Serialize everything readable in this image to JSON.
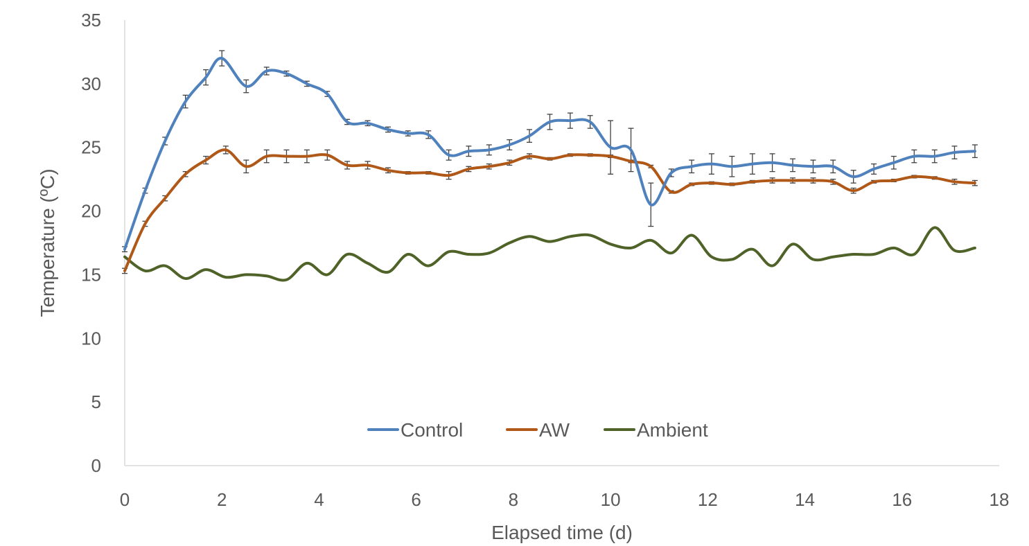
{
  "chart_data": {
    "type": "line",
    "title": "",
    "xlabel": "Elapsed time (d)",
    "ylabel": "Temperature (ºC)",
    "xlim": [
      0,
      18
    ],
    "ylim": [
      0,
      35
    ],
    "x_ticks": [
      "0",
      "2",
      "4",
      "6",
      "8",
      "10",
      "12",
      "14",
      "16",
      "18"
    ],
    "y_ticks": [
      "0",
      "5",
      "10",
      "15",
      "20",
      "25",
      "30",
      "35"
    ],
    "grid": false,
    "legend_position": "bottom-inside",
    "series": [
      {
        "name": "Control",
        "color": "#4f81bd",
        "x": [
          0,
          0.42,
          0.83,
          1.25,
          1.67,
          2.0,
          2.5,
          2.92,
          3.33,
          3.75,
          4.17,
          4.58,
          5.0,
          5.42,
          5.83,
          6.25,
          6.67,
          7.08,
          7.5,
          7.92,
          8.33,
          8.75,
          9.17,
          9.58,
          10.0,
          10.42,
          10.83,
          11.25,
          11.67,
          12.08,
          12.5,
          12.92,
          13.33,
          13.75,
          14.17,
          14.58,
          15.0,
          15.42,
          15.83,
          16.25,
          16.67,
          17.08,
          17.5
        ],
        "values": [
          17.0,
          21.6,
          25.5,
          28.6,
          30.5,
          32.0,
          29.8,
          31.0,
          30.8,
          30.0,
          29.2,
          27.0,
          26.9,
          26.4,
          26.1,
          26.0,
          24.4,
          24.7,
          24.8,
          25.2,
          25.9,
          27.0,
          27.1,
          27.0,
          25.0,
          24.8,
          20.5,
          23.0,
          23.5,
          23.7,
          23.5,
          23.7,
          23.8,
          23.6,
          23.5,
          23.5,
          22.7,
          23.3,
          23.8,
          24.3,
          24.3,
          24.6,
          24.7
        ],
        "errors": [
          0.2,
          0.2,
          0.3,
          0.5,
          0.6,
          0.6,
          0.5,
          0.3,
          0.2,
          0.2,
          0.2,
          0.2,
          0.2,
          0.2,
          0.2,
          0.3,
          0.4,
          0.4,
          0.4,
          0.4,
          0.5,
          0.6,
          0.6,
          0.5,
          2.1,
          1.7,
          1.7,
          0.3,
          0.5,
          0.8,
          0.8,
          0.8,
          0.7,
          0.5,
          0.5,
          0.5,
          0.5,
          0.4,
          0.5,
          0.5,
          0.5,
          0.5,
          0.5
        ]
      },
      {
        "name": "AW",
        "color": "#b05818",
        "x": [
          0,
          0.42,
          0.83,
          1.25,
          1.67,
          2.08,
          2.5,
          2.92,
          3.33,
          3.75,
          4.17,
          4.58,
          5.0,
          5.42,
          5.83,
          6.25,
          6.67,
          7.08,
          7.5,
          7.92,
          8.33,
          8.75,
          9.17,
          9.58,
          10.0,
          10.42,
          10.83,
          11.25,
          11.67,
          12.08,
          12.5,
          12.92,
          13.33,
          13.75,
          14.17,
          14.58,
          15.0,
          15.42,
          15.83,
          16.25,
          16.67,
          17.08,
          17.5
        ],
        "values": [
          15.3,
          19.0,
          21.0,
          22.9,
          24.0,
          24.8,
          23.5,
          24.3,
          24.3,
          24.3,
          24.4,
          23.6,
          23.6,
          23.2,
          23.0,
          23.0,
          22.8,
          23.3,
          23.5,
          23.8,
          24.3,
          24.1,
          24.4,
          24.4,
          24.3,
          23.9,
          23.5,
          21.5,
          22.1,
          22.2,
          22.1,
          22.3,
          22.4,
          22.4,
          22.4,
          22.3,
          21.6,
          22.3,
          22.4,
          22.7,
          22.6,
          22.3,
          22.2
        ],
        "errors": [
          0.2,
          0.2,
          0.2,
          0.2,
          0.3,
          0.3,
          0.5,
          0.5,
          0.5,
          0.5,
          0.4,
          0.3,
          0.3,
          0.2,
          0.1,
          0.1,
          0.3,
          0.2,
          0.2,
          0.2,
          0.2,
          0.1,
          0.1,
          0.1,
          0.1,
          0.1,
          0.1,
          0.1,
          0.1,
          0.1,
          0.1,
          0.1,
          0.2,
          0.2,
          0.2,
          0.2,
          0.2,
          0.1,
          0.1,
          0.1,
          0.1,
          0.2,
          0.2
        ]
      },
      {
        "name": "Ambient",
        "color": "#4f6228",
        "x": [
          0,
          0.42,
          0.83,
          1.25,
          1.67,
          2.08,
          2.5,
          2.92,
          3.33,
          3.75,
          4.17,
          4.58,
          5.0,
          5.42,
          5.83,
          6.25,
          6.67,
          7.08,
          7.5,
          7.92,
          8.33,
          8.75,
          9.17,
          9.58,
          10.0,
          10.42,
          10.83,
          11.25,
          11.67,
          12.08,
          12.5,
          12.92,
          13.33,
          13.75,
          14.17,
          14.58,
          15.0,
          15.42,
          15.83,
          16.25,
          16.67,
          17.08,
          17.5
        ],
        "values": [
          16.4,
          15.3,
          15.7,
          14.7,
          15.4,
          14.8,
          15.0,
          14.9,
          14.6,
          15.9,
          15.0,
          16.6,
          15.9,
          15.2,
          16.6,
          15.7,
          16.8,
          16.6,
          16.7,
          17.5,
          18.0,
          17.6,
          18.0,
          18.1,
          17.4,
          17.1,
          17.7,
          16.7,
          18.1,
          16.4,
          16.2,
          17.0,
          15.7,
          17.4,
          16.2,
          16.4,
          16.6,
          16.6,
          17.1,
          16.6,
          18.7,
          16.9,
          17.1
        ]
      }
    ]
  }
}
